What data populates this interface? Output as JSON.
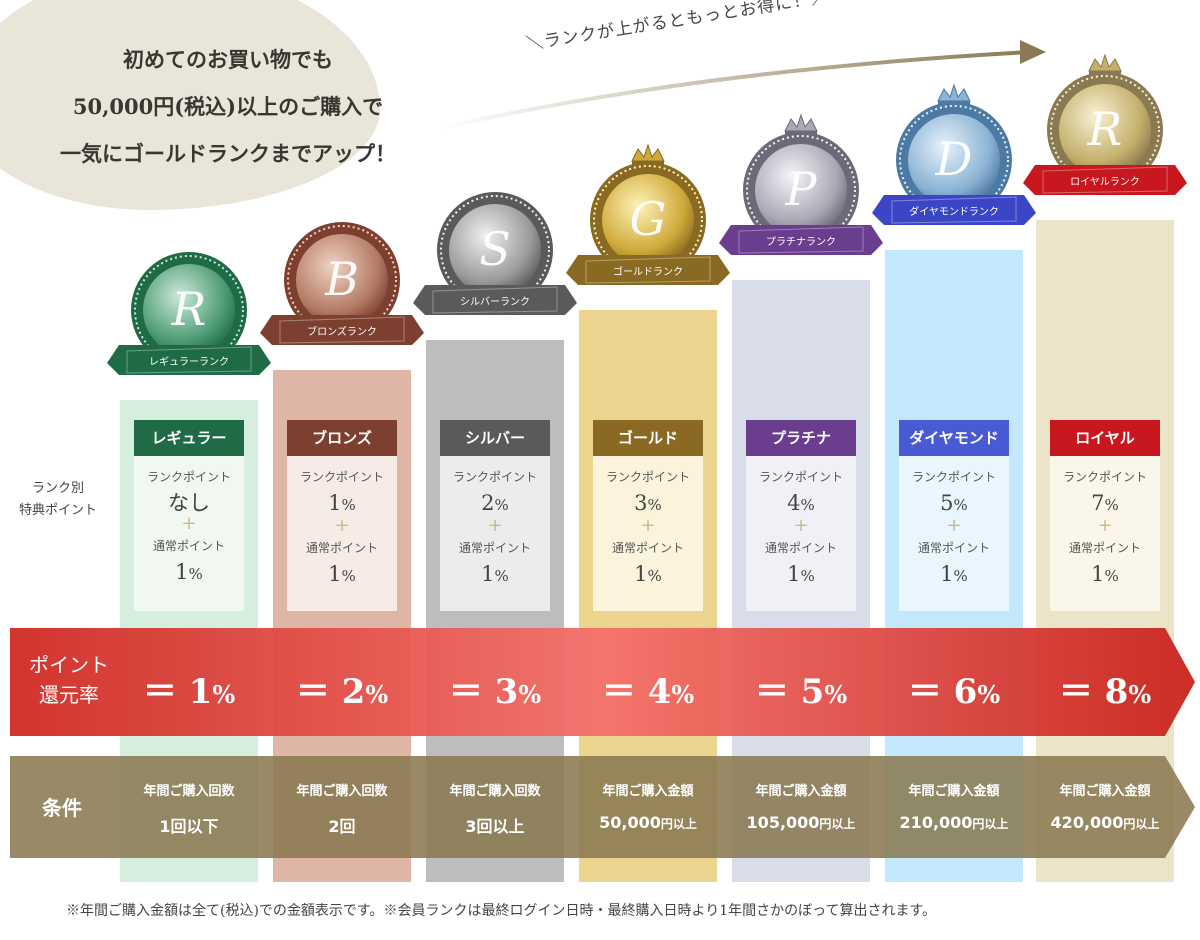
{
  "intro": {
    "lines": [
      "初めてのお買い物でも",
      "50,000円(税込)以上のご購入で",
      "一気にゴールドランクまでアップ！"
    ]
  },
  "tagline": "＼ランクが上がるともっとお得に！／",
  "side_label": {
    "line1": "ランク別",
    "line2": "特典ポイント"
  },
  "rate_title": {
    "line1": "ポイント",
    "line2": "還元率"
  },
  "cond_title": "条件",
  "rank_point_label": "ランクポイント",
  "normal_point_label": "通常ポイント",
  "plus": "+",
  "ranks": [
    {
      "name": "レギュラー",
      "ribbon": "レギュラーランク",
      "letter": "R",
      "rank_point": "なし",
      "normal_point": "1",
      "rate": "1",
      "cond_label": "年間ご購入回数",
      "cond_value": "1回以下",
      "cond_suffix": ""
    },
    {
      "name": "ブロンズ",
      "ribbon": "ブロンズランク",
      "letter": "B",
      "rank_point": "1",
      "normal_point": "1",
      "rate": "2",
      "cond_label": "年間ご購入回数",
      "cond_value": "2回",
      "cond_suffix": ""
    },
    {
      "name": "シルバー",
      "ribbon": "シルバーランク",
      "letter": "S",
      "rank_point": "2",
      "normal_point": "1",
      "rate": "3",
      "cond_label": "年間ご購入回数",
      "cond_value": "3回以上",
      "cond_suffix": ""
    },
    {
      "name": "ゴールド",
      "ribbon": "ゴールドランク",
      "letter": "G",
      "rank_point": "3",
      "normal_point": "1",
      "rate": "4",
      "cond_label": "年間ご購入金額",
      "cond_value": "50,000",
      "cond_suffix": "円以上"
    },
    {
      "name": "プラチナ",
      "ribbon": "プラチナランク",
      "letter": "P",
      "rank_point": "4",
      "normal_point": "1",
      "rate": "5",
      "cond_label": "年間ご購入金額",
      "cond_value": "105,000",
      "cond_suffix": "円以上"
    },
    {
      "name": "ダイヤモンド",
      "ribbon": "ダイヤモンドランク",
      "letter": "D",
      "rank_point": "5",
      "normal_point": "1",
      "rate": "6",
      "cond_label": "年間ご購入金額",
      "cond_value": "210,000",
      "cond_suffix": "円以上"
    },
    {
      "name": "ロイヤル",
      "ribbon": "ロイヤルランク",
      "letter": "R",
      "rank_point": "7",
      "normal_point": "1",
      "rate": "8",
      "cond_label": "年間ご購入金額",
      "cond_value": "420,000",
      "cond_suffix": "円以上"
    }
  ],
  "percent": "%",
  "equals": "＝",
  "footnote": "※年間ご購入金額は全て(税込)での金額表示です。※会員ランクは最終ログイン日時・最終購入日時より1年間さかのぼって算出されます。",
  "colors": {
    "regular": "#1e6b45",
    "bronze": "#7d4030",
    "silver": "#5a5a5a",
    "gold": "#8a6a22",
    "platinum": "#6a3d8f",
    "diamond": "#4a5ad4",
    "royal": "#c8171e",
    "red_band": "#d7382e",
    "cond_band": "#8a7a52"
  }
}
